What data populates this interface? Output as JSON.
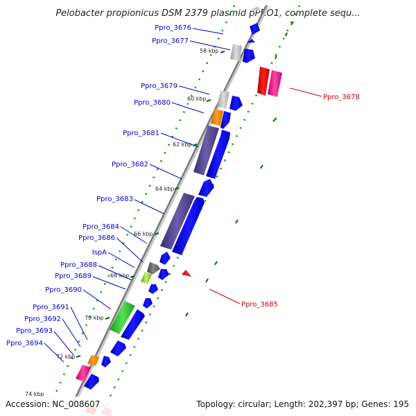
{
  "title": "Pelobacter propionicus DSM 2379 plasmid pPRO1, complete sequ...",
  "footer": {
    "accession": "Accession: NC_008607",
    "summary": "Topology: circular; Length: 202,397 bp; Genes: 195"
  },
  "ticks": [
    "58 kbp",
    "60 kbp",
    "62 kbp",
    "64 kbp",
    "66 kbp",
    "68 kbp",
    "70 kbp",
    "72 kbp",
    "74 kbp"
  ],
  "labels_left": [
    "Ppro_3676",
    "Ppro_3677",
    "Ppro_3679",
    "Ppro_3680",
    "Ppro_3681",
    "Ppro_3682",
    "Ppro_3683",
    "Ppro_3684",
    "Ppro_3686",
    "lspA",
    "Ppro_3688",
    "Ppro_3689",
    "Ppro_3690",
    "Ppro_3691",
    "Ppro_3692",
    "Ppro_3693",
    "Ppro_3694"
  ],
  "labels_right": [
    "Ppro_3678",
    "Ppro_3685"
  ],
  "colors": {
    "forward_label": "#0000cc",
    "reverse_label": "#cc0000",
    "forward_gene": "#0000ee",
    "reverse_gene": "#ee0000",
    "backbone": "#808080",
    "dotted_track": "#008800"
  }
}
